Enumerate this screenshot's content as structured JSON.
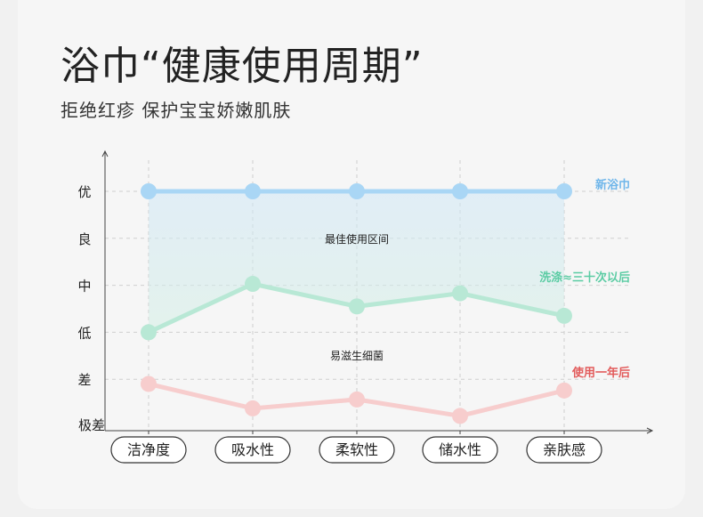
{
  "header": {
    "title": "浴巾“健康使用周期”",
    "subtitle": "拒绝红疹 保护宝宝娇嫩肌肤"
  },
  "chart_data": {
    "type": "line",
    "categories": [
      "洁净度",
      "吸水性",
      "柔软性",
      "储水性",
      "亲肤感"
    ],
    "y_ticks": [
      "极差",
      "差",
      "低",
      "中",
      "良",
      "优"
    ],
    "ylim": [
      0,
      5
    ],
    "series": [
      {
        "name": "新浴巾",
        "color": "#a9d6f5",
        "label_color": "#6fb6ea",
        "values": [
          5,
          5,
          5,
          5,
          5
        ]
      },
      {
        "name": "洗涤≈三十次以后",
        "color": "#b8e8d5",
        "label_color": "#5ccca4",
        "values": [
          2.0,
          3.03,
          2.55,
          2.83,
          2.35
        ]
      },
      {
        "name": "使用一年后",
        "color": "#f7cdcd",
        "label_color": "#e25b5b",
        "values": [
          0.9,
          0.38,
          0.57,
          0.22,
          0.76
        ]
      }
    ],
    "annotations": {
      "upper_region": "最佳使用区间",
      "lower_region": "易滋生细菌"
    },
    "grid": true
  }
}
